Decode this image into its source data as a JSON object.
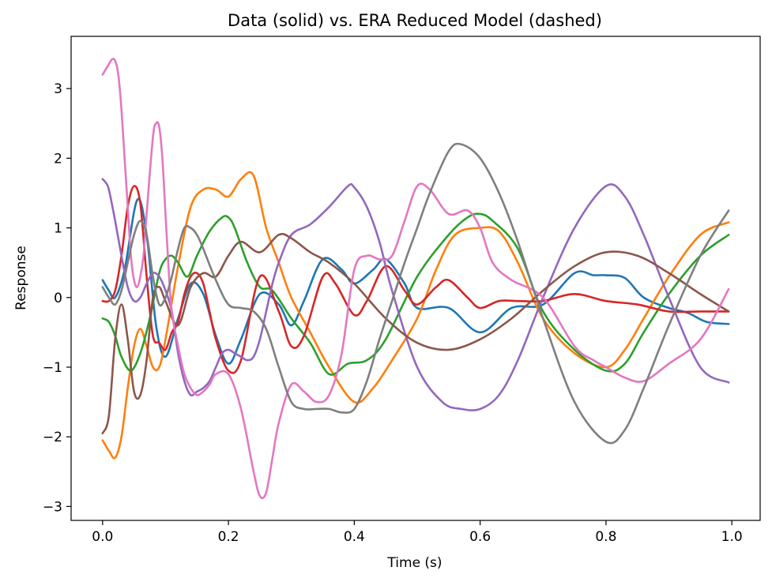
{
  "chart_data": {
    "type": "line",
    "title": "Data (solid) vs. ERA Reduced Model (dashed)",
    "xlabel": "Time (s)",
    "ylabel": "Response",
    "xlim": [
      -0.05,
      1.045
    ],
    "ylim": [
      -3.2,
      3.75
    ],
    "grid": false,
    "legend": "none",
    "xticks": [
      {
        "value": 0.0,
        "label": "0.0"
      },
      {
        "value": 0.2,
        "label": "0.2"
      },
      {
        "value": 0.4,
        "label": "0.4"
      },
      {
        "value": 0.6,
        "label": "0.6"
      },
      {
        "value": 0.8,
        "label": "0.8"
      },
      {
        "value": 1.0,
        "label": "1.0"
      }
    ],
    "yticks": [
      {
        "value": -3,
        "label": "−3"
      },
      {
        "value": -2,
        "label": "−2"
      },
      {
        "value": -1,
        "label": "−1"
      },
      {
        "value": 0,
        "label": "0"
      },
      {
        "value": 1,
        "label": "1"
      },
      {
        "value": 2,
        "label": "2"
      },
      {
        "value": 3,
        "label": "3"
      }
    ],
    "series": [
      {
        "color": "#1f77b4",
        "x": [
          0.0,
          0.01,
          0.02,
          0.035,
          0.055,
          0.07,
          0.085,
          0.1,
          0.12,
          0.14,
          0.16,
          0.18,
          0.2,
          0.22,
          0.25,
          0.28,
          0.3,
          0.32,
          0.35,
          0.38,
          0.4,
          0.43,
          0.45,
          0.48,
          0.5,
          0.55,
          0.6,
          0.65,
          0.7,
          0.75,
          0.78,
          0.8,
          0.83,
          0.86,
          0.9,
          0.93,
          0.96,
          0.995
        ],
        "y": [
          0.25,
          0.1,
          0.0,
          0.4,
          1.4,
          0.9,
          -0.4,
          -0.85,
          -0.3,
          0.2,
          0.05,
          -0.55,
          -0.95,
          -0.6,
          0.05,
          -0.1,
          -0.4,
          -0.05,
          0.55,
          0.4,
          0.2,
          0.4,
          0.55,
          0.2,
          -0.15,
          -0.15,
          -0.5,
          -0.15,
          -0.1,
          0.35,
          0.32,
          0.32,
          0.28,
          0.0,
          -0.15,
          -0.22,
          -0.35,
          -0.38
        ]
      },
      {
        "color": "#ff7f0e",
        "x": [
          0.0,
          0.01,
          0.02,
          0.03,
          0.04,
          0.05,
          0.06,
          0.07,
          0.08,
          0.09,
          0.1,
          0.12,
          0.14,
          0.16,
          0.18,
          0.2,
          0.22,
          0.24,
          0.26,
          0.28,
          0.3,
          0.33,
          0.36,
          0.4,
          0.43,
          0.46,
          0.5,
          0.53,
          0.56,
          0.6,
          0.63,
          0.66,
          0.7,
          0.75,
          0.8,
          0.83,
          0.86,
          0.9,
          0.95,
          0.995
        ],
        "y": [
          -2.05,
          -2.2,
          -2.3,
          -2.0,
          -1.3,
          -0.7,
          -0.45,
          -0.7,
          -1.0,
          -1.0,
          -0.6,
          0.45,
          1.3,
          1.55,
          1.55,
          1.45,
          1.7,
          1.75,
          1.0,
          0.5,
          0.0,
          -0.5,
          -1.0,
          -1.5,
          -1.3,
          -0.9,
          -0.3,
          0.4,
          0.9,
          1.0,
          0.95,
          0.5,
          -0.3,
          -0.8,
          -1.0,
          -0.75,
          -0.3,
          0.3,
          0.9,
          1.08
        ]
      },
      {
        "color": "#2ca02c",
        "x": [
          0.0,
          0.01,
          0.02,
          0.03,
          0.045,
          0.06,
          0.075,
          0.09,
          0.1,
          0.11,
          0.12,
          0.135,
          0.15,
          0.17,
          0.19,
          0.2,
          0.21,
          0.23,
          0.25,
          0.27,
          0.3,
          0.33,
          0.36,
          0.39,
          0.42,
          0.45,
          0.5,
          0.55,
          0.58,
          0.6,
          0.62,
          0.66,
          0.7,
          0.75,
          0.8,
          0.83,
          0.86,
          0.9,
          0.95,
          0.995
        ],
        "y": [
          -0.3,
          -0.35,
          -0.55,
          -0.85,
          -1.05,
          -0.8,
          -0.3,
          0.35,
          0.55,
          0.6,
          0.5,
          0.3,
          0.6,
          0.95,
          1.15,
          1.15,
          1.0,
          0.5,
          0.15,
          0.1,
          -0.3,
          -0.65,
          -1.1,
          -0.95,
          -0.9,
          -0.6,
          0.3,
          0.9,
          1.15,
          1.2,
          1.1,
          0.7,
          -0.2,
          -0.75,
          -1.05,
          -0.95,
          -0.5,
          0.05,
          0.6,
          0.9
        ]
      },
      {
        "color": "#d62728",
        "x": [
          0.0,
          0.01,
          0.02,
          0.03,
          0.04,
          0.05,
          0.06,
          0.07,
          0.08,
          0.09,
          0.1,
          0.11,
          0.12,
          0.13,
          0.14,
          0.15,
          0.16,
          0.17,
          0.18,
          0.2,
          0.22,
          0.25,
          0.28,
          0.3,
          0.32,
          0.35,
          0.37,
          0.4,
          0.42,
          0.45,
          0.48,
          0.5,
          0.53,
          0.55,
          0.58,
          0.6,
          0.63,
          0.66,
          0.7,
          0.75,
          0.8,
          0.85,
          0.9,
          0.95,
          0.995
        ],
        "y": [
          -0.05,
          -0.05,
          0.1,
          0.6,
          1.3,
          1.6,
          1.35,
          0.3,
          -0.55,
          -0.65,
          -0.75,
          -0.5,
          -0.35,
          0.05,
          0.3,
          0.35,
          0.2,
          -0.2,
          -0.6,
          -1.05,
          -0.9,
          0.3,
          -0.2,
          -0.7,
          -0.55,
          0.3,
          0.2,
          -0.25,
          -0.05,
          0.45,
          0.1,
          -0.1,
          0.15,
          0.25,
          0.0,
          -0.15,
          -0.05,
          -0.05,
          -0.05,
          0.05,
          -0.05,
          -0.1,
          -0.2,
          -0.2,
          -0.2
        ]
      },
      {
        "color": "#9467bd",
        "x": [
          0.0,
          0.005,
          0.01,
          0.02,
          0.03,
          0.04,
          0.05,
          0.06,
          0.07,
          0.08,
          0.09,
          0.1,
          0.11,
          0.12,
          0.13,
          0.14,
          0.15,
          0.16,
          0.17,
          0.18,
          0.19,
          0.2,
          0.21,
          0.22,
          0.23,
          0.24,
          0.25,
          0.26,
          0.27,
          0.28,
          0.3,
          0.33,
          0.36,
          0.39,
          0.4,
          0.42,
          0.44,
          0.46,
          0.5,
          0.54,
          0.57,
          0.6,
          0.63,
          0.66,
          0.7,
          0.75,
          0.8,
          0.83,
          0.86,
          0.9,
          0.95,
          0.995
        ],
        "y": [
          1.7,
          1.65,
          1.55,
          1.1,
          0.6,
          0.15,
          -0.05,
          0.0,
          0.2,
          0.35,
          0.3,
          0.1,
          -0.2,
          -0.8,
          -1.2,
          -1.4,
          -1.35,
          -1.3,
          -1.2,
          -1.0,
          -0.8,
          -0.75,
          -0.8,
          -0.85,
          -0.9,
          -0.85,
          -0.6,
          -0.2,
          0.2,
          0.5,
          0.9,
          1.05,
          1.3,
          1.6,
          1.58,
          1.3,
          0.8,
          0.1,
          -1.0,
          -1.5,
          -1.6,
          -1.6,
          -1.4,
          -0.9,
          0.0,
          1.0,
          1.6,
          1.45,
          0.9,
          0.0,
          -1.0,
          -1.22
        ]
      },
      {
        "color": "#8c564b",
        "x": [
          0.0,
          0.01,
          0.02,
          0.03,
          0.04,
          0.05,
          0.06,
          0.07,
          0.08,
          0.09,
          0.1,
          0.12,
          0.14,
          0.16,
          0.18,
          0.2,
          0.22,
          0.25,
          0.28,
          0.3,
          0.33,
          0.36,
          0.4,
          0.45,
          0.5,
          0.55,
          0.6,
          0.65,
          0.7,
          0.75,
          0.8,
          0.85,
          0.9,
          0.95,
          0.995
        ],
        "y": [
          -1.95,
          -1.7,
          -0.6,
          -0.1,
          -0.6,
          -1.35,
          -1.4,
          -0.9,
          0.0,
          0.15,
          -0.05,
          -0.4,
          0.15,
          0.35,
          0.3,
          0.6,
          0.8,
          0.65,
          0.9,
          0.85,
          0.65,
          0.5,
          0.2,
          -0.3,
          -0.65,
          -0.75,
          -0.6,
          -0.3,
          0.1,
          0.45,
          0.65,
          0.6,
          0.35,
          0.05,
          -0.2
        ]
      },
      {
        "color": "#e377c2",
        "x": [
          0.0,
          0.01,
          0.015,
          0.02,
          0.025,
          0.03,
          0.035,
          0.04,
          0.045,
          0.05,
          0.055,
          0.06,
          0.065,
          0.07,
          0.08,
          0.085,
          0.09,
          0.095,
          0.1,
          0.105,
          0.11,
          0.12,
          0.13,
          0.14,
          0.15,
          0.16,
          0.17,
          0.18,
          0.2,
          0.22,
          0.24,
          0.25,
          0.26,
          0.27,
          0.28,
          0.3,
          0.32,
          0.34,
          0.36,
          0.38,
          0.4,
          0.42,
          0.44,
          0.46,
          0.48,
          0.5,
          0.52,
          0.55,
          0.58,
          0.6,
          0.62,
          0.65,
          0.7,
          0.75,
          0.78,
          0.8,
          0.83,
          0.86,
          0.9,
          0.95,
          0.995
        ],
        "y": [
          3.2,
          3.35,
          3.42,
          3.4,
          3.2,
          2.7,
          2.0,
          1.3,
          0.6,
          0.25,
          0.15,
          0.3,
          0.6,
          1.2,
          2.3,
          2.5,
          2.45,
          2.0,
          1.2,
          0.4,
          -0.2,
          -0.7,
          -1.1,
          -1.3,
          -1.4,
          -1.35,
          -1.25,
          -1.1,
          -1.1,
          -1.6,
          -2.5,
          -2.85,
          -2.8,
          -2.3,
          -1.8,
          -1.25,
          -1.35,
          -1.5,
          -1.4,
          -0.8,
          0.4,
          0.6,
          0.55,
          0.6,
          1.1,
          1.6,
          1.55,
          1.2,
          1.25,
          1.0,
          0.5,
          0.25,
          0.0,
          -0.7,
          -0.9,
          -1.0,
          -1.15,
          -1.2,
          -0.95,
          -0.6,
          0.12
        ]
      },
      {
        "color": "#7f7f7f",
        "x": [
          0.0,
          0.01,
          0.02,
          0.03,
          0.04,
          0.05,
          0.06,
          0.07,
          0.08,
          0.09,
          0.1,
          0.11,
          0.12,
          0.13,
          0.14,
          0.15,
          0.16,
          0.18,
          0.2,
          0.22,
          0.24,
          0.26,
          0.28,
          0.3,
          0.32,
          0.34,
          0.36,
          0.38,
          0.4,
          0.42,
          0.44,
          0.46,
          0.48,
          0.5,
          0.52,
          0.55,
          0.57,
          0.6,
          0.63,
          0.66,
          0.7,
          0.75,
          0.8,
          0.83,
          0.86,
          0.9,
          0.95,
          0.995
        ],
        "y": [
          0.15,
          0.0,
          -0.1,
          0.1,
          0.5,
          0.9,
          1.1,
          0.9,
          0.3,
          -0.1,
          0.0,
          0.3,
          0.7,
          1.0,
          1.0,
          0.9,
          0.7,
          0.25,
          -0.1,
          -0.15,
          -0.2,
          -0.45,
          -1.0,
          -1.5,
          -1.6,
          -1.6,
          -1.6,
          -1.65,
          -1.6,
          -1.2,
          -0.6,
          -0.05,
          0.5,
          1.0,
          1.5,
          2.1,
          2.2,
          2.0,
          1.5,
          0.8,
          -0.3,
          -1.5,
          -2.07,
          -1.9,
          -1.3,
          -0.4,
          0.6,
          1.25
        ]
      }
    ]
  }
}
